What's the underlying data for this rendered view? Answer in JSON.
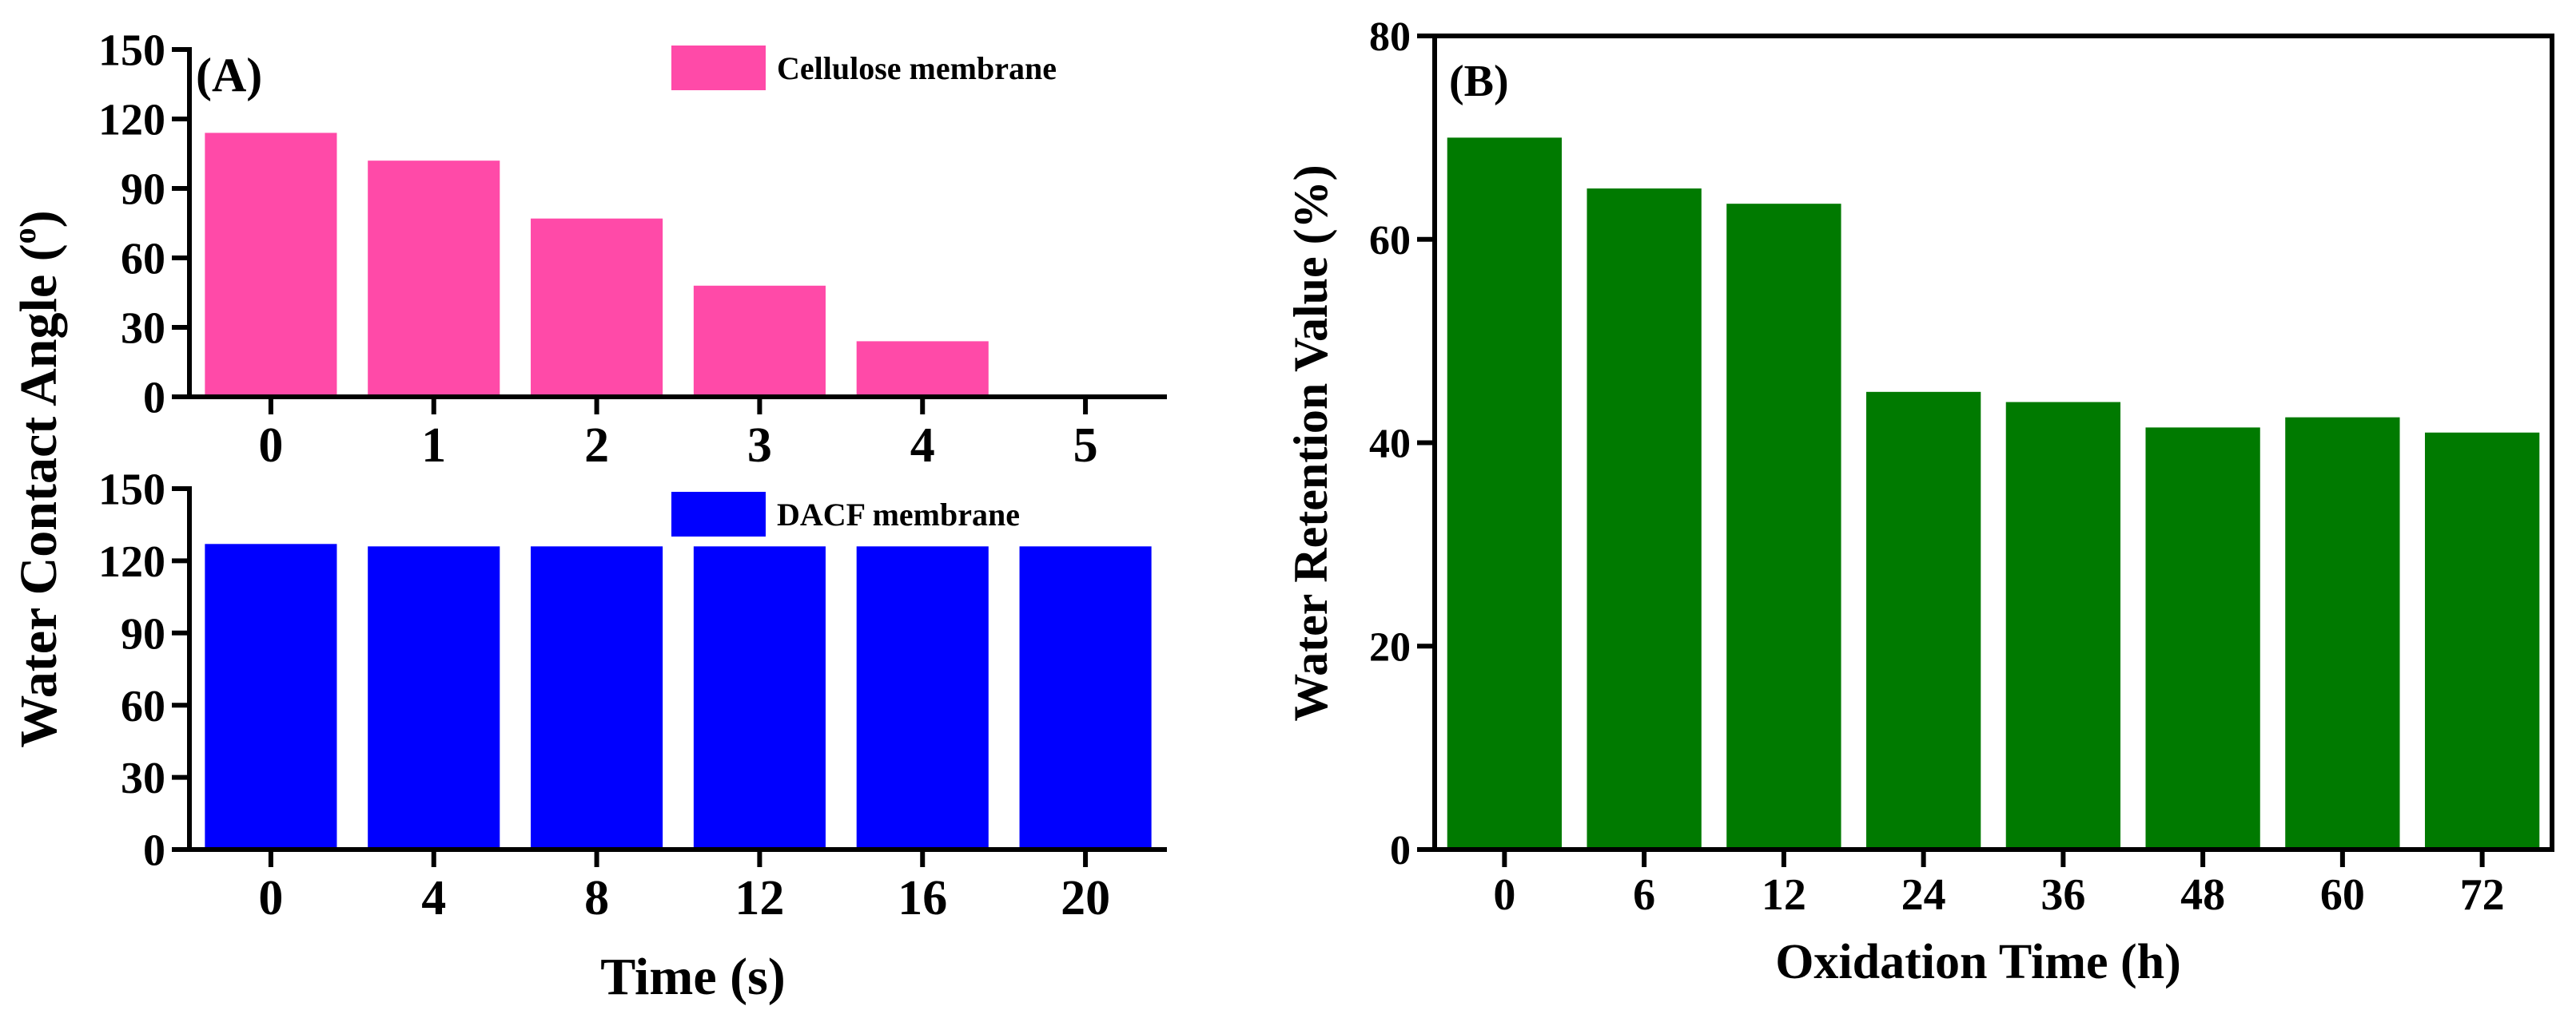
{
  "colors": {
    "cellulose": "#FF4AA8",
    "dacf": "#0000FF",
    "oxidation": "#007A00",
    "axis": "#000000"
  },
  "chart_data": [
    {
      "id": "A-top",
      "type": "bar",
      "panel_label": "(A)",
      "ylabel": "Water Contact Angle (°)",
      "ylabel_superscript": "o",
      "categories": [
        "0",
        "1",
        "2",
        "3",
        "4",
        "5"
      ],
      "values": [
        114,
        102,
        77,
        48,
        24,
        0
      ],
      "yticks": [
        "0",
        "30",
        "60",
        "90",
        "120",
        "150"
      ],
      "ylim": [
        0,
        150
      ],
      "legend": "Cellulose membrane",
      "legend_position": "top-right",
      "xlabel": ""
    },
    {
      "id": "A-bottom",
      "type": "bar",
      "panel_label": "",
      "categories": [
        "0",
        "4",
        "8",
        "12",
        "16",
        "20"
      ],
      "values": [
        127,
        126,
        126,
        126,
        126,
        126
      ],
      "yticks": [
        "0",
        "30",
        "60",
        "90",
        "120",
        "150"
      ],
      "ylim": [
        0,
        150
      ],
      "legend": "DACF membrane",
      "legend_position": "top-right",
      "xlabel": "Time (s)"
    },
    {
      "id": "B",
      "type": "bar",
      "panel_label": "(B)",
      "categories": [
        "0",
        "6",
        "12",
        "24",
        "36",
        "48",
        "60",
        "72"
      ],
      "values": [
        70,
        65,
        63.5,
        45,
        44,
        41.5,
        42.5,
        41
      ],
      "yticks": [
        "0",
        "20",
        "40",
        "60",
        "80"
      ],
      "ylim": [
        0,
        80
      ],
      "xlabel": "Oxidation Time (h)",
      "ylabel": "Water Retention Value (%)"
    }
  ]
}
